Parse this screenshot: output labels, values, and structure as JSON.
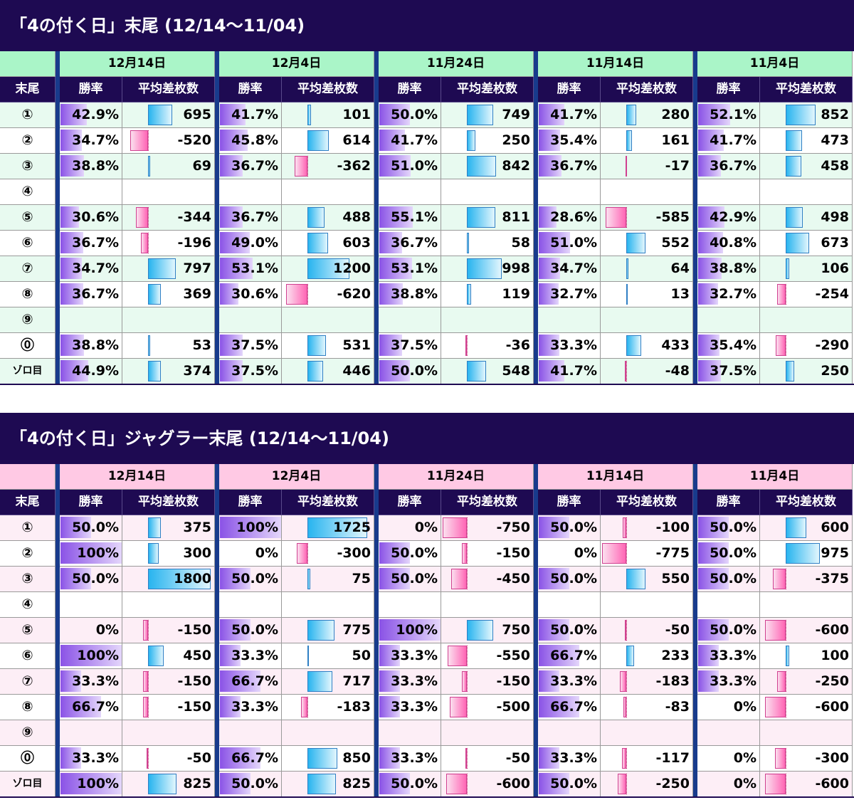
{
  "colors": {
    "title_bg": "#1e0a52",
    "separator": "#183b8c",
    "rate_bar": "#8a52e6",
    "positive_bar": "#28b4ef",
    "negative_bar": "#ff66b5",
    "all_date_bg": "#aaf5c8",
    "all_row_alt": "#e8faf0",
    "jug_date_bg": "#ffc9e4",
    "jug_row_alt": "#fdeef6"
  },
  "diff_scale_max": 1800,
  "tables": [
    {
      "title": "「4の付く日」末尾 (12/14～11/04)",
      "date_bg": "#aaf5c8",
      "alt_bg": "#e8faf0",
      "dates": [
        "12月14日",
        "12月4日",
        "11月24日",
        "11月14日",
        "11月4日"
      ],
      "label_header": "末尾",
      "col_headers": {
        "rate": "勝率",
        "diff": "平均差枚数"
      },
      "rows": [
        {
          "label": "①",
          "cells": [
            {
              "rate": "42.9%",
              "diff": 695
            },
            {
              "rate": "41.7%",
              "diff": 101
            },
            {
              "rate": "50.0%",
              "diff": 749
            },
            {
              "rate": "41.7%",
              "diff": 280
            },
            {
              "rate": "52.1%",
              "diff": 852
            }
          ]
        },
        {
          "label": "②",
          "cells": [
            {
              "rate": "34.7%",
              "diff": -520
            },
            {
              "rate": "45.8%",
              "diff": 614
            },
            {
              "rate": "41.7%",
              "diff": 250
            },
            {
              "rate": "35.4%",
              "diff": 161
            },
            {
              "rate": "41.7%",
              "diff": 473
            }
          ]
        },
        {
          "label": "③",
          "cells": [
            {
              "rate": "38.8%",
              "diff": 69
            },
            {
              "rate": "36.7%",
              "diff": -362
            },
            {
              "rate": "51.0%",
              "diff": 842
            },
            {
              "rate": "36.7%",
              "diff": -17
            },
            {
              "rate": "36.7%",
              "diff": 458
            }
          ]
        },
        {
          "label": "④",
          "cells": [
            null,
            null,
            null,
            null,
            null
          ]
        },
        {
          "label": "⑤",
          "cells": [
            {
              "rate": "30.6%",
              "diff": -344
            },
            {
              "rate": "36.7%",
              "diff": 488
            },
            {
              "rate": "55.1%",
              "diff": 811
            },
            {
              "rate": "28.6%",
              "diff": -585
            },
            {
              "rate": "42.9%",
              "diff": 498
            }
          ]
        },
        {
          "label": "⑥",
          "cells": [
            {
              "rate": "36.7%",
              "diff": -196
            },
            {
              "rate": "49.0%",
              "diff": 603
            },
            {
              "rate": "36.7%",
              "diff": 58
            },
            {
              "rate": "51.0%",
              "diff": 552
            },
            {
              "rate": "40.8%",
              "diff": 673
            }
          ]
        },
        {
          "label": "⑦",
          "cells": [
            {
              "rate": "34.7%",
              "diff": 797
            },
            {
              "rate": "53.1%",
              "diff": 1200
            },
            {
              "rate": "53.1%",
              "diff": 998
            },
            {
              "rate": "34.7%",
              "diff": 64
            },
            {
              "rate": "38.8%",
              "diff": 106
            }
          ]
        },
        {
          "label": "⑧",
          "cells": [
            {
              "rate": "36.7%",
              "diff": 369
            },
            {
              "rate": "30.6%",
              "diff": -620
            },
            {
              "rate": "38.8%",
              "diff": 119
            },
            {
              "rate": "32.7%",
              "diff": 13
            },
            {
              "rate": "32.7%",
              "diff": -254
            }
          ]
        },
        {
          "label": "⑨",
          "cells": [
            null,
            null,
            null,
            null,
            null
          ]
        },
        {
          "label": "⓪",
          "cells": [
            {
              "rate": "38.8%",
              "diff": 53
            },
            {
              "rate": "37.5%",
              "diff": 531
            },
            {
              "rate": "37.5%",
              "diff": -36
            },
            {
              "rate": "33.3%",
              "diff": 433
            },
            {
              "rate": "35.4%",
              "diff": -290
            }
          ]
        },
        {
          "label": "ゾロ目",
          "cells": [
            {
              "rate": "44.9%",
              "diff": 374
            },
            {
              "rate": "37.5%",
              "diff": 446
            },
            {
              "rate": "50.0%",
              "diff": 548
            },
            {
              "rate": "41.7%",
              "diff": -48
            },
            {
              "rate": "37.5%",
              "diff": 250
            }
          ]
        }
      ]
    },
    {
      "title": "「4の付く日」ジャグラー末尾 (12/14～11/04)",
      "date_bg": "#ffc9e4",
      "alt_bg": "#fdeef6",
      "dates": [
        "12月14日",
        "12月4日",
        "11月24日",
        "11月14日",
        "11月4日"
      ],
      "label_header": "末尾",
      "col_headers": {
        "rate": "勝率",
        "diff": "平均差枚数"
      },
      "rows": [
        {
          "label": "①",
          "cells": [
            {
              "rate": "50.0%",
              "diff": 375
            },
            {
              "rate": "100%",
              "diff": 1725
            },
            {
              "rate": "0%",
              "diff": -750
            },
            {
              "rate": "50.0%",
              "diff": -100
            },
            {
              "rate": "50.0%",
              "diff": 600
            }
          ]
        },
        {
          "label": "②",
          "cells": [
            {
              "rate": "100%",
              "diff": 300
            },
            {
              "rate": "0%",
              "diff": -300
            },
            {
              "rate": "50.0%",
              "diff": -150
            },
            {
              "rate": "0%",
              "diff": -775
            },
            {
              "rate": "50.0%",
              "diff": 975
            }
          ]
        },
        {
          "label": "③",
          "cells": [
            {
              "rate": "50.0%",
              "diff": 1800
            },
            {
              "rate": "50.0%",
              "diff": 75
            },
            {
              "rate": "50.0%",
              "diff": -450
            },
            {
              "rate": "50.0%",
              "diff": 550
            },
            {
              "rate": "50.0%",
              "diff": -375
            }
          ]
        },
        {
          "label": "④",
          "cells": [
            null,
            null,
            null,
            null,
            null
          ]
        },
        {
          "label": "⑤",
          "cells": [
            {
              "rate": "0%",
              "diff": -150
            },
            {
              "rate": "50.0%",
              "diff": 775
            },
            {
              "rate": "100%",
              "diff": 750
            },
            {
              "rate": "50.0%",
              "diff": -50
            },
            {
              "rate": "50.0%",
              "diff": -600
            }
          ]
        },
        {
          "label": "⑥",
          "cells": [
            {
              "rate": "100%",
              "diff": 450
            },
            {
              "rate": "33.3%",
              "diff": 50
            },
            {
              "rate": "33.3%",
              "diff": -550
            },
            {
              "rate": "66.7%",
              "diff": 233
            },
            {
              "rate": "33.3%",
              "diff": 100
            }
          ]
        },
        {
          "label": "⑦",
          "cells": [
            {
              "rate": "33.3%",
              "diff": -150
            },
            {
              "rate": "66.7%",
              "diff": 717
            },
            {
              "rate": "33.3%",
              "diff": -150
            },
            {
              "rate": "33.3%",
              "diff": -183
            },
            {
              "rate": "33.3%",
              "diff": -250
            }
          ]
        },
        {
          "label": "⑧",
          "cells": [
            {
              "rate": "66.7%",
              "diff": -150
            },
            {
              "rate": "33.3%",
              "diff": -183
            },
            {
              "rate": "33.3%",
              "diff": -500
            },
            {
              "rate": "66.7%",
              "diff": -83
            },
            {
              "rate": "0%",
              "diff": -600
            }
          ]
        },
        {
          "label": "⑨",
          "cells": [
            null,
            null,
            null,
            null,
            null
          ]
        },
        {
          "label": "⓪",
          "cells": [
            {
              "rate": "33.3%",
              "diff": -50
            },
            {
              "rate": "66.7%",
              "diff": 850
            },
            {
              "rate": "33.3%",
              "diff": -50
            },
            {
              "rate": "33.3%",
              "diff": -117
            },
            {
              "rate": "0%",
              "diff": -300
            }
          ]
        },
        {
          "label": "ゾロ目",
          "cells": [
            {
              "rate": "100%",
              "diff": 825
            },
            {
              "rate": "50.0%",
              "diff": 825
            },
            {
              "rate": "50.0%",
              "diff": -600
            },
            {
              "rate": "50.0%",
              "diff": -250
            },
            {
              "rate": "0%",
              "diff": -600
            }
          ]
        }
      ]
    }
  ]
}
